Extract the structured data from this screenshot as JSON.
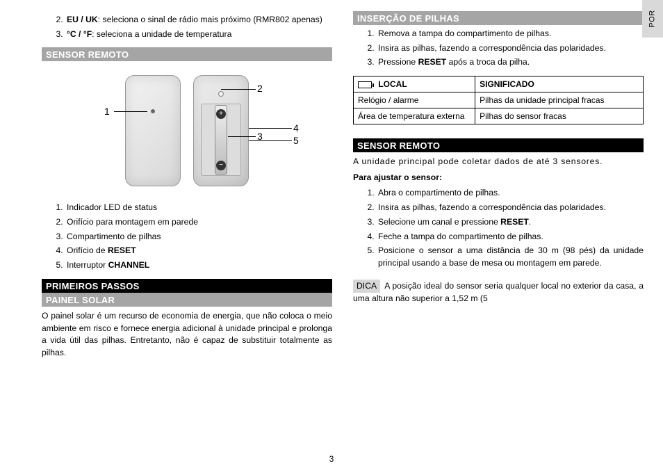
{
  "sideTab": "POR",
  "pageNumber": "3",
  "left": {
    "topItems": [
      {
        "html": "<b>EU / UK</b>: seleciona o sinal de rádio mais próximo (RMR802 apenas)"
      },
      {
        "html": "<b>°C / °F</b>: seleciona a unidade de temperatura"
      }
    ],
    "secRemote": "SENSOR REMOTO",
    "callouts": {
      "n1": "1",
      "n2": "2",
      "n3": "3",
      "n4": "4",
      "n5": "5"
    },
    "sensorList": [
      "Indicador LED de status",
      "Orifício para montagem em parede",
      "Compartimento de pilhas",
      {
        "html": "Orifício de <b>RESET</b>"
      },
      {
        "html": "Interruptor <b>CHANNEL</b>"
      }
    ],
    "secFirstSteps": "PRIMEIROS PASSOS",
    "secSolar": "PAINEL SOLAR",
    "solarText": "O painel solar é um recurso de economia de energia, que não coloca o meio ambiente em risco e fornece energia adicional à unidade principal e prolonga a vida útil das pilhas. Entretanto, não é capaz de substituir totalmente as pilhas."
  },
  "right": {
    "secBatteries": "INSERÇÃO DE PILHAS",
    "battSteps": [
      "Remova a tampa do compartimento de pilhas.",
      "Insira as pilhas, fazendo a correspondência das polaridades.",
      {
        "html": "Pressione <b>RESET</b> após a troca da pilha."
      }
    ],
    "table": {
      "hLocal": "LOCAL",
      "hMeaning": "SIGNIFICADO",
      "rows": [
        {
          "local": "Relógio / alarme",
          "meaning": "Pilhas da unidade principal fracas"
        },
        {
          "local": "Área de temperatura externa",
          "meaning": "Pilhas do sensor fracas"
        }
      ]
    },
    "secRemote2": "SENSOR REMOTO",
    "collectText": "A unidade principal pode coletar dados de até 3 sensores.",
    "adjustTitle": "Para ajustar o sensor:",
    "adjustSteps": [
      "Abra o compartimento de pilhas.",
      "Insira as pilhas, fazendo a correspondência das polaridades.",
      {
        "html": "Selecione um canal e pressione <b>RESET</b>."
      },
      "Feche a tampa do compartimento de pilhas.",
      "Posicione o sensor a uma distância de 30 m (98 pés) da unidade principal usando a base de mesa ou montagem em parede."
    ],
    "tipLabel": "DICA",
    "tipText": " A posição ideal do sensor seria qualquer local no exterior da casa, a uma altura não superior a 1,52 m (5"
  }
}
